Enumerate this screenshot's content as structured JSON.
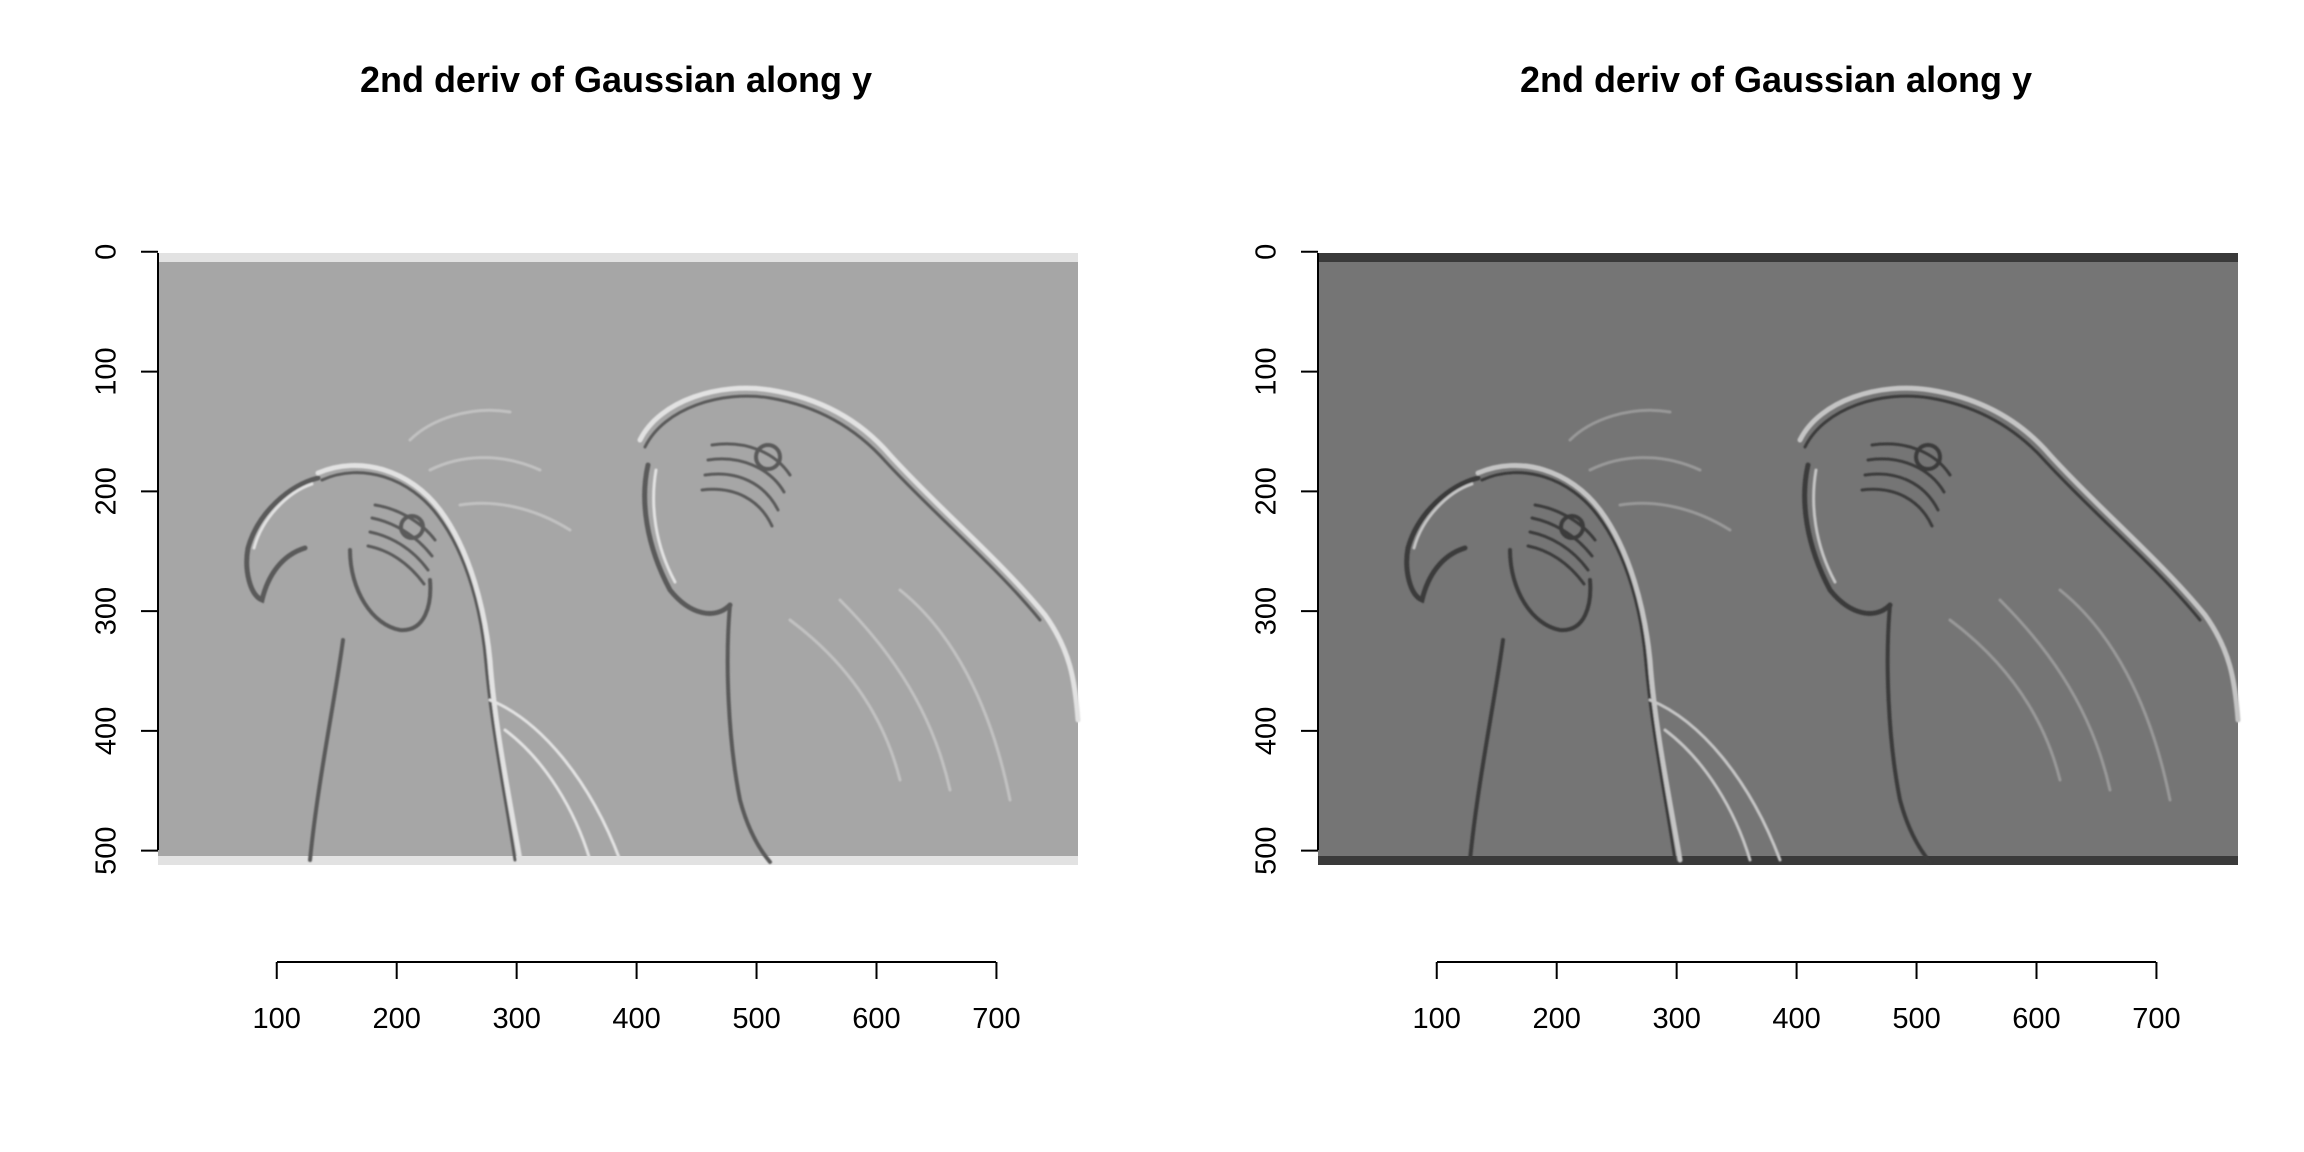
{
  "figure": {
    "background": "#ffffff"
  },
  "chart_data": [
    {
      "type": "heatmap",
      "title": "2nd deriv of Gaussian along y",
      "xlabel": "",
      "ylabel": "",
      "x_ticks": [
        100,
        200,
        300,
        400,
        500,
        600,
        700
      ],
      "y_ticks": [
        0,
        100,
        200,
        300,
        400,
        500
      ],
      "xlim": [
        1,
        768
      ],
      "ylim": [
        512,
        1
      ],
      "y_axis_reversed": true,
      "grid": false,
      "legend": "none",
      "image_content": "filtered photograph of two parrots",
      "colors": {
        "background_gray": "#a6a6a6",
        "edge_dark": "#5a5a5a",
        "edge_light": "#e2e2e2",
        "axis": "#000000"
      }
    },
    {
      "type": "heatmap",
      "title": "2nd deriv of Gaussian along y",
      "xlabel": "",
      "ylabel": "",
      "x_ticks": [
        100,
        200,
        300,
        400,
        500,
        600,
        700
      ],
      "y_ticks": [
        0,
        100,
        200,
        300,
        400,
        500
      ],
      "xlim": [
        1,
        768
      ],
      "ylim": [
        512,
        1
      ],
      "y_axis_reversed": true,
      "grid": false,
      "legend": "none",
      "image_content": "filtered photograph of two parrots",
      "colors": {
        "background_gray": "#757575",
        "edge_dark": "#3a3a3a",
        "edge_light": "#c4c4c4",
        "axis": "#000000"
      }
    }
  ]
}
